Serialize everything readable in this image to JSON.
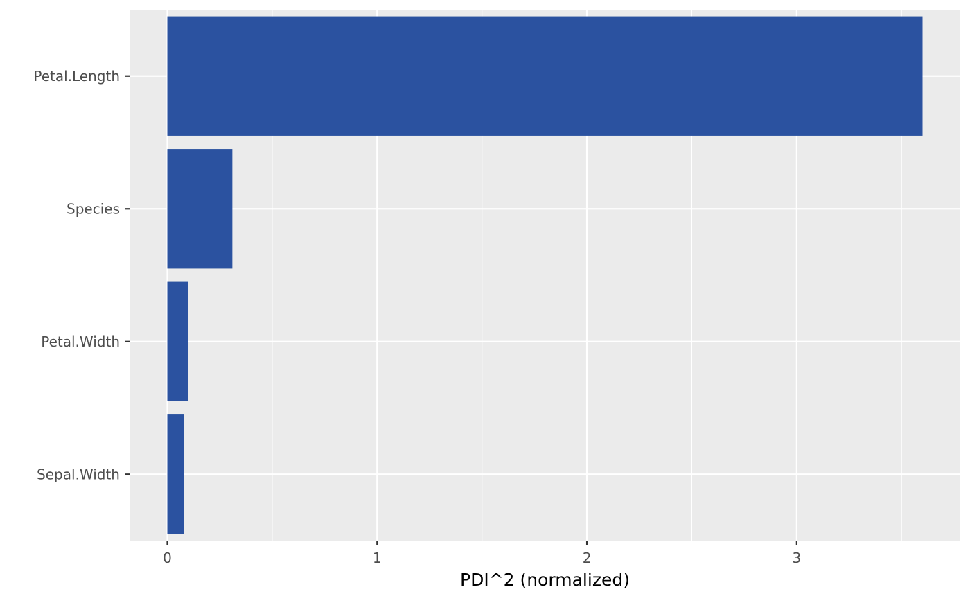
{
  "chart_data": {
    "type": "bar",
    "orientation": "horizontal",
    "categories": [
      "Petal.Length",
      "Species",
      "Petal.Width",
      "Sepal.Width"
    ],
    "values": [
      3.6,
      0.31,
      0.1,
      0.08
    ],
    "title": "",
    "xlabel": "PDI^2 (normalized)",
    "ylabel": "",
    "xlim": [
      -0.18,
      3.78
    ],
    "xticks": [
      0,
      1,
      2,
      3
    ],
    "xtick_labels": [
      "0",
      "1",
      "2",
      "3"
    ],
    "grid": true,
    "legend": "none",
    "colors": {
      "bar": "#2b52a0",
      "panel": "#ebebeb",
      "grid": "#ffffff",
      "text": "#4d4d4d",
      "axis_title": "#000000"
    }
  }
}
